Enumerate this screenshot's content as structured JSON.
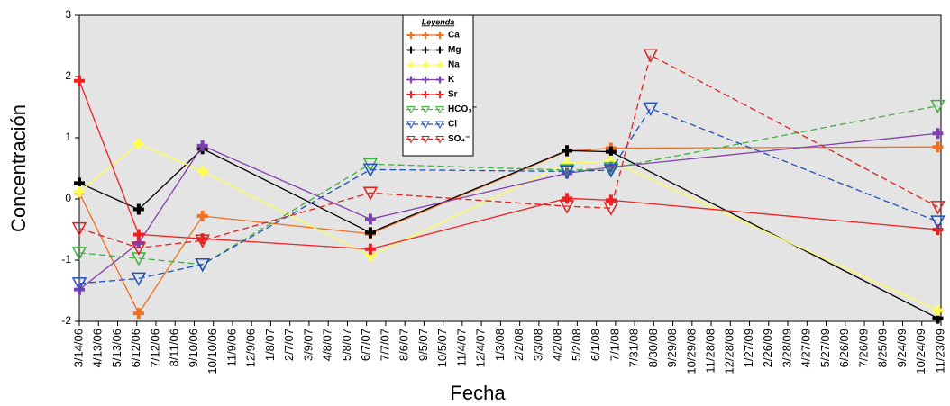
{
  "chart_data": {
    "type": "line",
    "xlabel": "Fecha",
    "ylabel": "Concentración",
    "legend_title": "Leyenda",
    "legend_position": "top-center",
    "background": "#e4e4e4",
    "xlim": [
      "3/14/06",
      "11/23/09"
    ],
    "xticks": [
      "3/14/06",
      "4/13/06",
      "5/13/06",
      "6/12/06",
      "7/12/06",
      "8/11/06",
      "9/10/06",
      "10/10/06",
      "11/9/06",
      "12/9/06",
      "1/8/07",
      "2/7/07",
      "3/9/07",
      "4/8/07",
      "5/8/07",
      "6/7/07",
      "7/7/07",
      "8/6/07",
      "9/5/07",
      "10/5/07",
      "11/4/07",
      "12/4/07",
      "1/3/08",
      "2/2/08",
      "3/3/08",
      "4/2/08",
      "5/2/08",
      "6/1/08",
      "7/1/08",
      "7/31/08",
      "8/30/08",
      "9/29/08",
      "10/29/08",
      "11/28/08",
      "12/28/08",
      "1/27/09",
      "2/26/09",
      "3/28/09",
      "4/27/09",
      "5/27/09",
      "6/26/09",
      "7/26/09",
      "8/25/09",
      "9/24/09",
      "10/24/09",
      "11/23/09"
    ],
    "ylim": [
      -2,
      3
    ],
    "yticks": [
      -2,
      -1,
      0,
      1,
      2,
      3
    ],
    "series": [
      {
        "name": "Ca",
        "color": "#f07020",
        "marker": "plus",
        "dashed": false,
        "x": [
          "3/14/06",
          "6/15/06",
          "9/23/06",
          "6/13/07",
          "4/16/08",
          "6/24/08",
          "11/18/09"
        ],
        "values": [
          0.1,
          -1.87,
          -0.28,
          -0.57,
          0.78,
          0.83,
          0.85
        ]
      },
      {
        "name": "Mg",
        "color": "#000000",
        "marker": "plus",
        "dashed": false,
        "x": [
          "3/14/06",
          "6/15/06",
          "9/23/06",
          "6/13/07",
          "4/16/08",
          "6/24/08",
          "11/18/09"
        ],
        "values": [
          0.26,
          -0.17,
          0.82,
          -0.55,
          0.79,
          0.77,
          -1.95
        ]
      },
      {
        "name": "Na",
        "color": "#ffff50",
        "marker": "plus",
        "dashed": false,
        "x": [
          "3/14/06",
          "6/15/06",
          "9/23/06",
          "6/13/07",
          "4/16/08",
          "6/24/08",
          "11/18/09"
        ],
        "values": [
          0.12,
          0.9,
          0.45,
          -0.93,
          0.58,
          0.62,
          -1.82
        ]
      },
      {
        "name": "K",
        "color": "#8040b0",
        "marker": "plus",
        "dashed": false,
        "x": [
          "3/14/06",
          "6/15/06",
          "9/23/06",
          "6/13/07",
          "4/16/08",
          "6/24/08",
          "11/18/09"
        ],
        "values": [
          -1.48,
          -0.72,
          0.87,
          -0.33,
          0.42,
          0.52,
          1.07
        ]
      },
      {
        "name": "Sr",
        "color": "#f02020",
        "marker": "plus",
        "dashed": false,
        "x": [
          "3/14/06",
          "6/15/06",
          "9/23/06",
          "6/13/07",
          "4/16/08",
          "6/24/08",
          "11/18/09"
        ],
        "values": [
          1.93,
          -0.58,
          -0.65,
          -0.82,
          0.01,
          -0.02,
          -0.5
        ]
      },
      {
        "name": "HCO₃⁻",
        "color": "#40b040",
        "marker": "triangle-down",
        "dashed": true,
        "x": [
          "3/14/06",
          "6/15/06",
          "9/23/06",
          "6/13/07",
          "4/16/08",
          "6/24/08",
          "11/18/09"
        ],
        "values": [
          -0.88,
          -0.97,
          -1.07,
          0.57,
          0.47,
          0.5,
          1.52
        ]
      },
      {
        "name": "Cl⁻",
        "color": "#2050c0",
        "marker": "triangle-down",
        "dashed": true,
        "x": [
          "3/14/06",
          "6/15/06",
          "9/23/06",
          "6/13/07",
          "4/16/08",
          "6/24/08",
          "8/25/08",
          "11/18/09"
        ],
        "values": [
          -1.38,
          -1.3,
          -1.07,
          0.48,
          0.45,
          0.47,
          1.48,
          -0.37
        ]
      },
      {
        "name": "SO₄⁻",
        "color": "#e02020",
        "marker": "triangle-down",
        "dashed": true,
        "x": [
          "3/14/06",
          "6/15/06",
          "9/23/06",
          "6/13/07",
          "4/16/08",
          "6/24/08",
          "8/25/08",
          "11/18/09"
        ],
        "values": [
          -0.48,
          -0.8,
          -0.68,
          0.1,
          -0.12,
          -0.15,
          2.35,
          -0.13
        ]
      }
    ]
  }
}
